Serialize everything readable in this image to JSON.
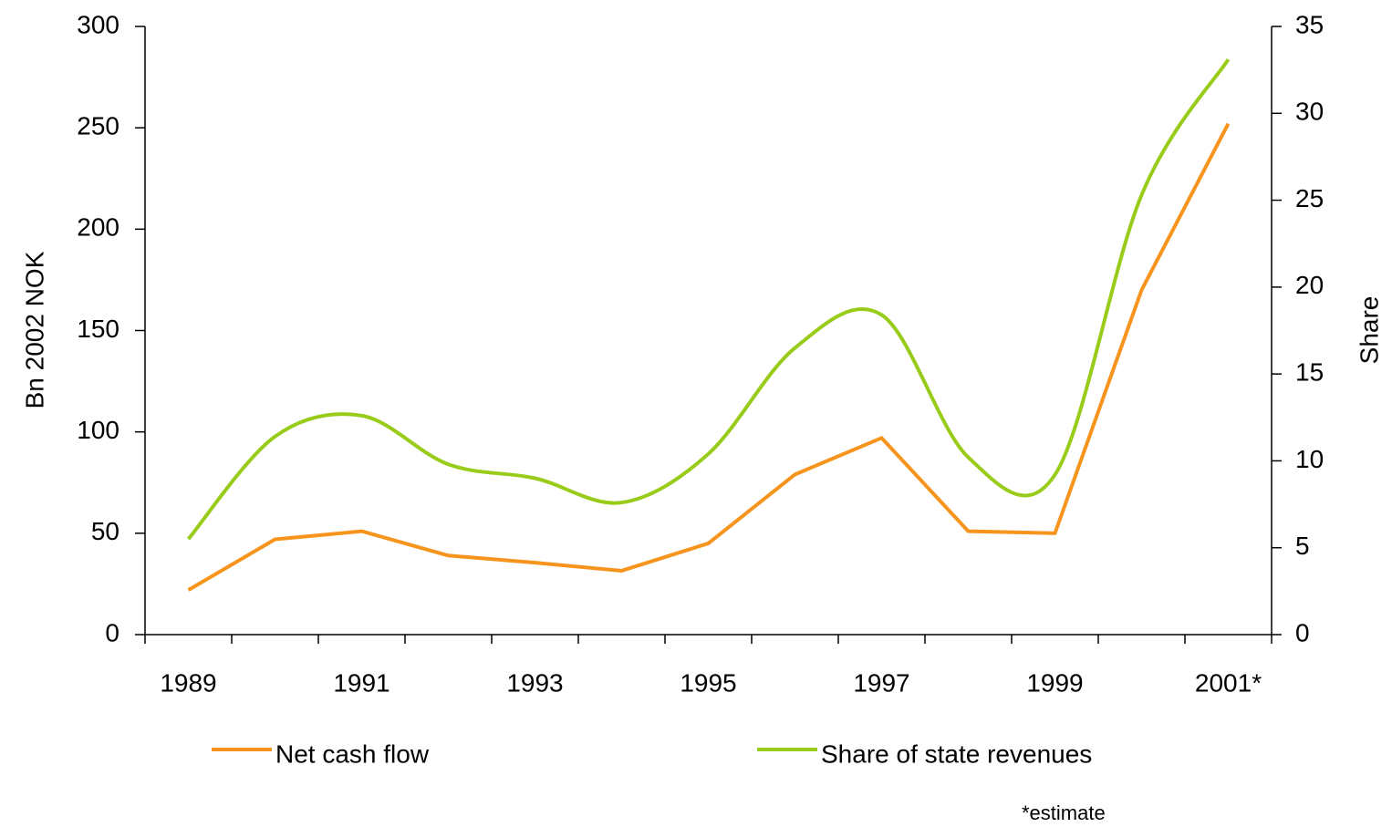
{
  "chart_data": {
    "type": "line",
    "categories": [
      "1989",
      null,
      "1991",
      null,
      "1993",
      null,
      "1995",
      null,
      "1997",
      null,
      "1999",
      null,
      "2001*"
    ],
    "series": [
      {
        "name": "Net cash flow",
        "color": "#f7941d",
        "values": [
          22,
          47,
          51,
          39,
          35.5,
          31.5,
          45,
          79,
          97,
          51,
          50,
          170,
          252
        ]
      },
      {
        "name": "Share of state revenues",
        "color": "#99cc1a",
        "axis": "y2",
        "smooth": true,
        "values": [
          5.5,
          11.4,
          12.6,
          9.8,
          9.0,
          7.6,
          10.4,
          16.5,
          18.4,
          10.2,
          9.2,
          25.3,
          33.1
        ]
      }
    ],
    "ylabel": "Bn 2002 NOK",
    "y2label": "Share",
    "ylim": [
      0,
      300
    ],
    "yticks": [
      0,
      50,
      100,
      150,
      200,
      250,
      300
    ],
    "y2lim": [
      0,
      35
    ],
    "y2ticks": [
      0,
      5,
      10,
      15,
      20,
      25,
      30,
      35
    ],
    "legend": "bottom",
    "annotation": "*estimate"
  }
}
